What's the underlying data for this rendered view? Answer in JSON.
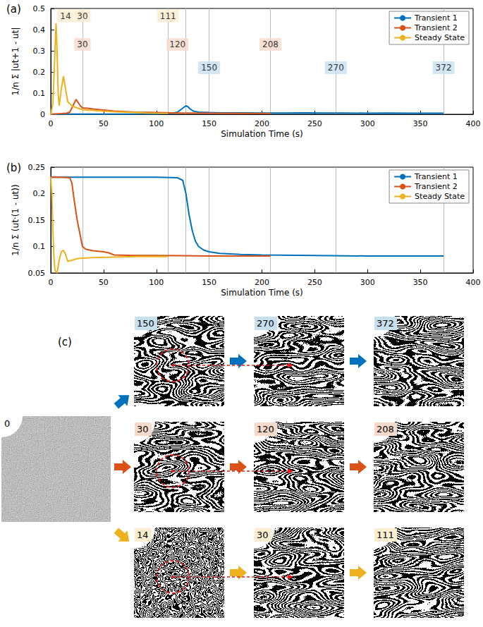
{
  "chart_data": [
    {
      "type": "line",
      "title": "(a)",
      "x_label": "Simulation Time (s)",
      "y_label": "1/n Σ |ut+1 - ut|",
      "xlim": [
        0,
        400
      ],
      "xticks": [
        0,
        50,
        100,
        150,
        200,
        250,
        300,
        350,
        400
      ],
      "ylim": [
        0,
        0.5
      ],
      "yticks": [
        0,
        0.1,
        0.2,
        0.3,
        0.4,
        0.5
      ],
      "grid": false,
      "legend": "upper right",
      "vlines": [
        30,
        111,
        128,
        150,
        208,
        270,
        372
      ],
      "annotations": [
        {
          "text": "14",
          "x": 14,
          "series": "Steady State"
        },
        {
          "text": "30",
          "x": 30,
          "series": "Steady State"
        },
        {
          "text": "111",
          "x": 111,
          "series": "Steady State"
        },
        {
          "text": "30",
          "x": 30,
          "series": "Transient 2"
        },
        {
          "text": "120",
          "x": 120,
          "series": "Transient 2"
        },
        {
          "text": "208",
          "x": 208,
          "series": "Transient 2"
        },
        {
          "text": "150",
          "x": 150,
          "series": "Transient 1"
        },
        {
          "text": "270",
          "x": 270,
          "series": "Transient 1"
        },
        {
          "text": "372",
          "x": 372,
          "series": "Transient 1"
        }
      ],
      "series": [
        {
          "name": "Transient 1",
          "color": "#0072bd",
          "x": [
            0,
            20,
            50,
            100,
            115,
            120,
            124,
            128,
            130,
            132,
            135,
            140,
            150,
            160,
            180,
            200,
            220,
            240,
            260,
            280,
            300,
            320,
            340,
            360,
            372
          ],
          "values": [
            0,
            0.001,
            0.001,
            0.002,
            0.005,
            0.01,
            0.025,
            0.04,
            0.035,
            0.025,
            0.015,
            0.01,
            0.008,
            0.007,
            0.007,
            0.006,
            0.006,
            0.007,
            0.006,
            0.006,
            0.005,
            0.006,
            0.005,
            0.005,
            0.005
          ]
        },
        {
          "name": "Transient 2",
          "color": "#d95319",
          "x": [
            0,
            5,
            10,
            15,
            18,
            20,
            22,
            24,
            26,
            28,
            30,
            35,
            40,
            50,
            60,
            80,
            100,
            120,
            150,
            180,
            208
          ],
          "values": [
            0,
            0.002,
            0.003,
            0.005,
            0.01,
            0.03,
            0.05,
            0.07,
            0.055,
            0.04,
            0.03,
            0.028,
            0.025,
            0.02,
            0.015,
            0.01,
            0.008,
            0.006,
            0.005,
            0.004,
            0.003
          ]
        },
        {
          "name": "Steady State",
          "color": "#edb120",
          "x": [
            0,
            2,
            4,
            5,
            6,
            7,
            8,
            10,
            12,
            14,
            16,
            18,
            20,
            22,
            25,
            28,
            30,
            35,
            40,
            50,
            60,
            70,
            80,
            90,
            100,
            111
          ],
          "values": [
            0,
            0.05,
            0.3,
            0.43,
            0.3,
            0.1,
            0.04,
            0.12,
            0.18,
            0.12,
            0.06,
            0.05,
            0.04,
            0.035,
            0.03,
            0.025,
            0.022,
            0.02,
            0.018,
            0.015,
            0.012,
            0.01,
            0.008,
            0.006,
            0.005,
            0.004
          ]
        }
      ]
    },
    {
      "type": "line",
      "title": "(b)",
      "x_label": "Simulation Time (s)",
      "y_label": "1/n Σ (ut·(1 - ut))",
      "xlim": [
        0,
        400
      ],
      "xticks": [
        0,
        50,
        100,
        150,
        200,
        250,
        300,
        350,
        400
      ],
      "ylim": [
        0.05,
        0.25
      ],
      "yticks": [
        0.05,
        0.1,
        0.15,
        0.2,
        0.25
      ],
      "grid": false,
      "legend": "upper right",
      "vlines": [
        30,
        111,
        128,
        150,
        208,
        270,
        372
      ],
      "series": [
        {
          "name": "Transient 1",
          "color": "#0072bd",
          "x": [
            0,
            50,
            100,
            120,
            125,
            128,
            131,
            134,
            137,
            140,
            145,
            150,
            160,
            180,
            200,
            250,
            300,
            350,
            372
          ],
          "values": [
            0.231,
            0.231,
            0.231,
            0.23,
            0.225,
            0.2,
            0.16,
            0.13,
            0.11,
            0.1,
            0.093,
            0.09,
            0.087,
            0.085,
            0.084,
            0.083,
            0.082,
            0.082,
            0.082
          ]
        },
        {
          "name": "Transient 2",
          "color": "#d95319",
          "x": [
            0,
            10,
            18,
            20,
            22,
            25,
            28,
            30,
            33,
            40,
            50,
            55,
            60,
            80,
            100,
            150,
            208
          ],
          "values": [
            0.231,
            0.231,
            0.23,
            0.22,
            0.19,
            0.15,
            0.12,
            0.1,
            0.095,
            0.092,
            0.09,
            0.088,
            0.084,
            0.083,
            0.083,
            0.082,
            0.082
          ]
        },
        {
          "name": "Steady State",
          "color": "#edb120",
          "x": [
            0,
            1,
            2,
            3,
            4,
            6,
            8,
            10,
            12,
            14,
            16,
            20,
            25,
            30,
            40,
            60,
            80,
            111
          ],
          "values": [
            0.231,
            0.2,
            0.13,
            0.08,
            0.055,
            0.05,
            0.075,
            0.09,
            0.093,
            0.085,
            0.072,
            0.074,
            0.077,
            0.078,
            0.079,
            0.08,
            0.081,
            0.081
          ]
        }
      ]
    }
  ],
  "panel_c": {
    "label": "(c)",
    "initial": "0",
    "rows": [
      {
        "series": "Transient 1",
        "frames": [
          "150",
          "270",
          "372"
        ]
      },
      {
        "series": "Transient 2",
        "frames": [
          "30",
          "120",
          "208"
        ]
      },
      {
        "series": "Steady State",
        "frames": [
          "14",
          "30",
          "111"
        ]
      }
    ]
  }
}
